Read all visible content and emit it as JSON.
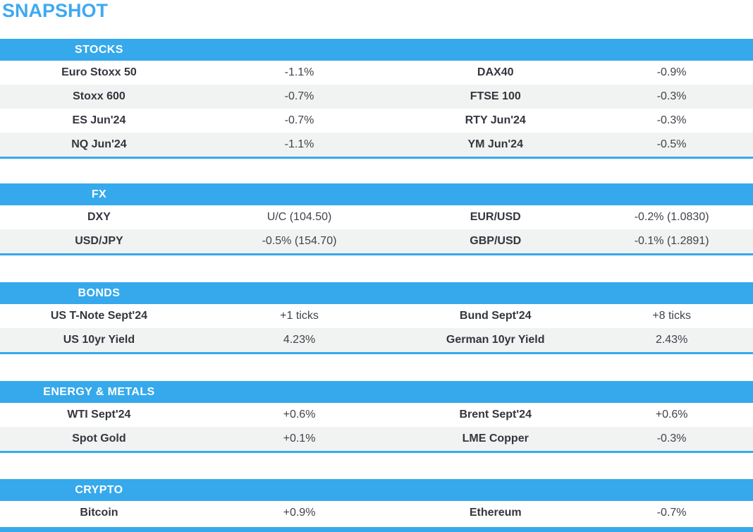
{
  "title": "SNAPSHOT",
  "colors": {
    "accent_blue": "#35A9EC",
    "title_blue": "#3FA9F2",
    "band_text": "#FFFFFF",
    "row_alt_bg": "#F1F2F2",
    "label_text": "#33363D",
    "value_text": "#3F434A"
  },
  "sections": [
    {
      "id": "stocks",
      "label": "STOCKS",
      "rows": [
        {
          "cells": [
            "Euro Stoxx 50",
            "-1.1%",
            "DAX40",
            "-0.9%"
          ]
        },
        {
          "cells": [
            "Stoxx 600",
            "-0.7%",
            "FTSE 100",
            "-0.3%"
          ]
        },
        {
          "cells": [
            "ES Jun'24",
            "-0.7%",
            "RTY Jun'24",
            "-0.3%"
          ]
        },
        {
          "cells": [
            "NQ Jun'24",
            "-1.1%",
            "YM Jun'24",
            "-0.5%"
          ]
        }
      ]
    },
    {
      "id": "fx",
      "label": "FX",
      "rows": [
        {
          "cells": [
            "DXY",
            "U/C (104.50)",
            "EUR/USD",
            "-0.2% (1.0830)"
          ]
        },
        {
          "cells": [
            "USD/JPY",
            "-0.5% (154.70)",
            "GBP/USD",
            "-0.1% (1.2891)"
          ]
        }
      ]
    },
    {
      "id": "bonds",
      "label": "BONDS",
      "rows": [
        {
          "cells": [
            "US T-Note Sept'24",
            "+1 ticks",
            "Bund Sept'24",
            "+8 ticks"
          ]
        },
        {
          "cells": [
            "US 10yr Yield",
            "4.23%",
            "German 10yr Yield",
            "2.43%"
          ]
        }
      ]
    },
    {
      "id": "energy-metals",
      "label": "ENERGY & METALS",
      "rows": [
        {
          "cells": [
            "WTI Sept'24",
            "+0.6%",
            "Brent Sept'24",
            "+0.6%"
          ]
        },
        {
          "cells": [
            "Spot Gold",
            "+0.1%",
            "LME Copper",
            "-0.3%"
          ]
        }
      ]
    },
    {
      "id": "crypto",
      "label": "CRYPTO",
      "rows": [
        {
          "cells": [
            "Bitcoin",
            "+0.9%",
            "Ethereum",
            "-0.7%"
          ]
        }
      ]
    }
  ]
}
